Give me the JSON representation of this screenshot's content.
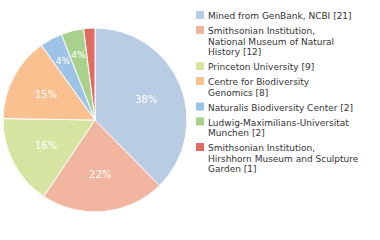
{
  "chart_data": {
    "type": "pie",
    "categories": [
      "Mined from GenBank, NCBI [21]",
      "Smithsonian Institution,\nNational Museum of Natural\nHistory [12]",
      "Princeton University [9]",
      "Centre for Biodiversity\nGenomics [8]",
      "Naturalis Biodiversity Center [2]",
      "Ludwig-Maximilians-Universitat\nMunchen [2]",
      "Smithsonian Institution,\nHirshhorn Museum and Sculpture\nGarden [1]"
    ],
    "values": [
      38,
      22,
      16,
      15,
      4,
      4,
      2
    ],
    "value_labels": [
      "38%",
      "22%",
      "16%",
      "15%",
      "4%",
      "4%",
      null
    ],
    "data_labels": true,
    "colors": [
      "#b8cce4",
      "#f2b5a0",
      "#d6e4a1",
      "#fac090",
      "#9dc3e6",
      "#a9d18e",
      "#e06b60"
    ],
    "legend": "right"
  }
}
